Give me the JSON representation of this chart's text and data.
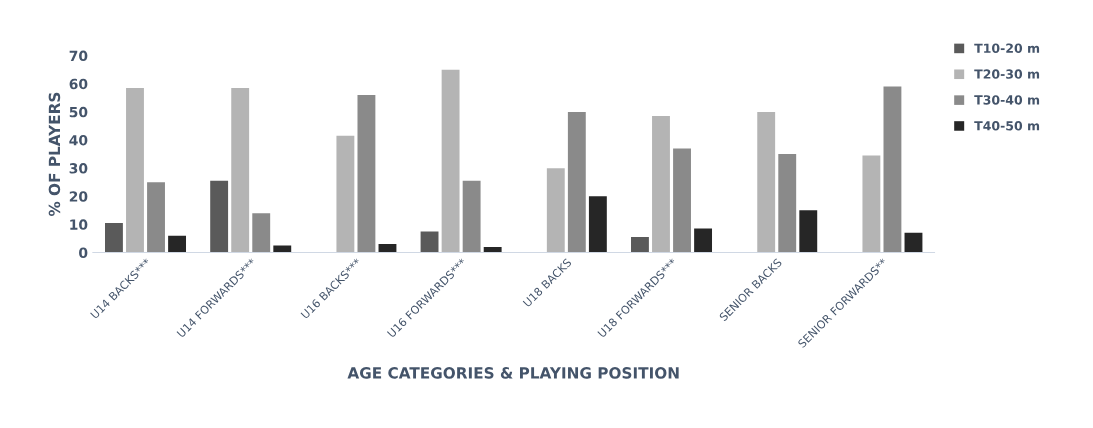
{
  "chart_data": {
    "type": "bar",
    "xlabel": "AGE CATEGORIES & PLAYING POSITION",
    "ylabel": "% OF PLAYERS",
    "categories": [
      "U14 BACKS***",
      "U14 FORWARDS***",
      "U16 BACKS***",
      "U16 FORWARDS***",
      "U18 BACKS",
      "U18 FORWARDS***",
      "SENIOR BACKS",
      "SENIOR FORWARDS**"
    ],
    "series": [
      {
        "name": "T10-20 m",
        "color": "#5a5a5a",
        "values": [
          10.5,
          25.5,
          0,
          7.5,
          0,
          5.5,
          0,
          0
        ]
      },
      {
        "name": "T20-30 m",
        "color": "#b4b4b4",
        "values": [
          58.5,
          58.5,
          41.5,
          65,
          30,
          48.5,
          50,
          34.5
        ]
      },
      {
        "name": "T30-40 m",
        "color": "#8a8a8a",
        "values": [
          25,
          14,
          56,
          25.5,
          50,
          37,
          35,
          59
        ]
      },
      {
        "name": "T40-50 m",
        "color": "#262626",
        "values": [
          6,
          2.5,
          3,
          2,
          20,
          8.5,
          15,
          7
        ]
      }
    ],
    "ylim": [
      0,
      70
    ],
    "yticks": [
      0,
      10,
      20,
      30,
      40,
      50,
      60,
      70
    ],
    "grid": false,
    "legend": "top right"
  }
}
